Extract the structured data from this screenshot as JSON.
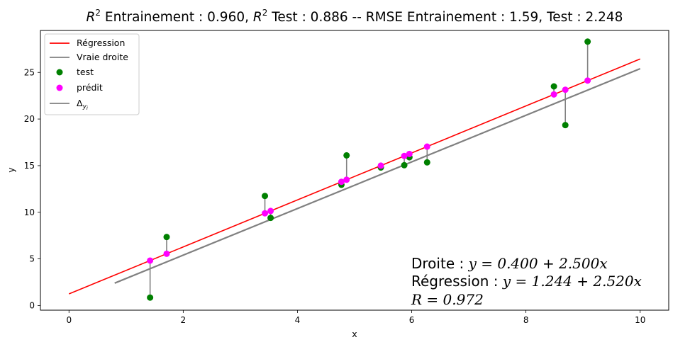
{
  "chart_data": {
    "type": "scatter",
    "title": {
      "part1": "R",
      "sup1": "2",
      "part2": " Entrainement : 0.960, ",
      "part3": "R",
      "sup2": "2",
      "part4": " Test : 0.886 --  RMSE Entrainement : 1.59, Test : 2.248"
    },
    "xlabel": "x",
    "ylabel": "y",
    "xlim": [
      -0.5,
      10.5
    ],
    "ylim": [
      -0.5,
      29.5
    ],
    "xticks": [
      0,
      2,
      4,
      6,
      8,
      10
    ],
    "yticks": [
      0,
      5,
      10,
      15,
      20,
      25
    ],
    "grid": false,
    "legend": {
      "placement": "top-left",
      "entries": [
        {
          "label": "Régression",
          "kind": "line",
          "color": "#ff0000"
        },
        {
          "label": "Vraie droite",
          "kind": "line",
          "color": "#808080"
        },
        {
          "label": "test",
          "kind": "marker",
          "color": "#008000"
        },
        {
          "label": "prédit",
          "kind": "marker",
          "color": "#ff00ff"
        },
        {
          "label": "Δ",
          "label_sub": "y",
          "label_subsub": "i",
          "kind": "line",
          "color": "#808080"
        }
      ]
    },
    "regression_line": {
      "intercept": 1.244,
      "slope": 2.52,
      "x_range": [
        0,
        10
      ],
      "color": "#ff0000"
    },
    "true_line": {
      "intercept": 0.4,
      "slope": 2.5,
      "x_range": [
        0.8,
        10
      ],
      "color": "#808080"
    },
    "test_points": {
      "x": [
        1.42,
        1.71,
        3.43,
        3.53,
        4.77,
        4.86,
        5.46,
        5.87,
        5.96,
        6.27,
        8.49,
        8.69,
        9.08
      ],
      "y": [
        0.85,
        7.35,
        11.75,
        9.4,
        12.95,
        16.1,
        14.8,
        15.05,
        15.9,
        15.35,
        23.5,
        19.35,
        28.3
      ],
      "color": "#008000"
    },
    "predicted_points": {
      "x": [
        1.42,
        1.71,
        3.43,
        3.53,
        4.77,
        4.86,
        5.46,
        5.87,
        5.96,
        6.27,
        8.49,
        8.69,
        9.08
      ],
      "y": [
        4.82,
        5.55,
        9.89,
        10.14,
        13.27,
        13.49,
        15.0,
        16.04,
        16.26,
        17.04,
        22.64,
        23.14,
        24.13
      ],
      "color": "#ff00ff"
    },
    "annotation": {
      "line1_prefix": "Droite : ",
      "line1_eq": "y = 0.400 + 2.500x",
      "line2_prefix": "Régression : ",
      "line2_eq": "y = 1.244 + 2.520x",
      "line3_eq": "R = 0.972"
    }
  }
}
